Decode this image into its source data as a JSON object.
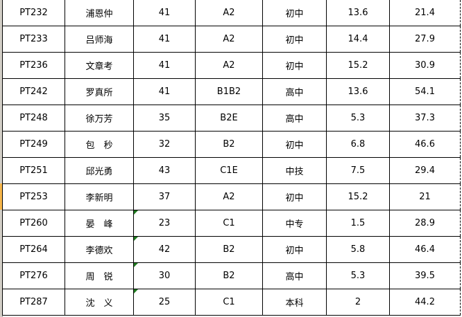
{
  "rows": [
    {
      "id": "PT232",
      "name": "浦恩仲",
      "age": "41",
      "license": "A2",
      "edu": "初中",
      "v1": "13.6",
      "v2": "21.4",
      "flag": false
    },
    {
      "id": "PT233",
      "name": "吕师海",
      "age": "41",
      "license": "A2",
      "edu": "初中",
      "v1": "14.4",
      "v2": "27.9",
      "flag": false
    },
    {
      "id": "PT236",
      "name": "文章考",
      "age": "41",
      "license": "A2",
      "edu": "初中",
      "v1": "15.2",
      "v2": "30.9",
      "flag": false
    },
    {
      "id": "PT242",
      "name": "罗真所",
      "age": "41",
      "license": "B1B2",
      "edu": "高中",
      "v1": "13.6",
      "v2": "54.1",
      "flag": false
    },
    {
      "id": "PT248",
      "name": "徐万芳",
      "age": "35",
      "license": "B2E",
      "edu": "高中",
      "v1": "5.3",
      "v2": "37.3",
      "flag": false
    },
    {
      "id": "PT249",
      "name": "包　秒",
      "age": "32",
      "license": "B2",
      "edu": "初中",
      "v1": "6.8",
      "v2": "46.6",
      "flag": false
    },
    {
      "id": "PT251",
      "name": "邱光勇",
      "age": "43",
      "license": "C1E",
      "edu": "中技",
      "v1": "7.5",
      "v2": "29.4",
      "flag": false
    },
    {
      "id": "PT253",
      "name": "李新明",
      "age": "37",
      "license": "A2",
      "edu": "初中",
      "v1": "15.2",
      "v2": "21",
      "flag": false
    },
    {
      "id": "PT260",
      "name": "晏　峰",
      "age": "23",
      "license": "C1",
      "edu": "中专",
      "v1": "1.5",
      "v2": "28.9",
      "flag": true
    },
    {
      "id": "PT264",
      "name": "李德欢",
      "age": "42",
      "license": "B2",
      "edu": "初中",
      "v1": "5.8",
      "v2": "46.4",
      "flag": true
    },
    {
      "id": "PT276",
      "name": "周　锐",
      "age": "30",
      "license": "B2",
      "edu": "高中",
      "v1": "5.3",
      "v2": "39.5",
      "flag": true
    },
    {
      "id": "PT287",
      "name": "沈　义",
      "age": "25",
      "license": "C1",
      "edu": "本科",
      "v1": "2",
      "v2": "44.2",
      "flag": true
    }
  ],
  "selected_row_index": 7,
  "colors": {
    "error_indicator": "#1f7a1f",
    "row_header_highlight": "#f7b64a"
  }
}
